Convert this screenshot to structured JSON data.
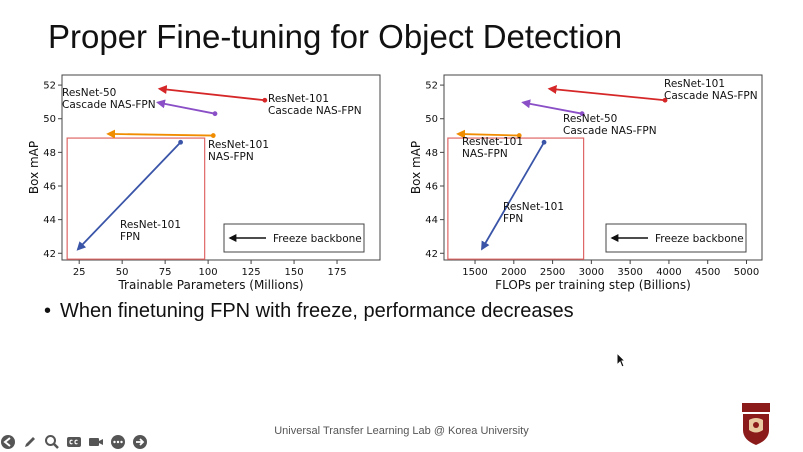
{
  "slide": {
    "title": "Proper Fine-tuning for Object Detection",
    "bullet_marker": "•",
    "bullet": "When finetuning FPN with freeze, performance decreases",
    "footer": "Universal Transfer Learning Lab @ Korea University"
  },
  "colors": {
    "red": "#d62728",
    "purple": "#8a4fc6",
    "orange": "#f08c00",
    "blue": "#3a55a8",
    "box": "#e06666"
  },
  "toolbar": {
    "icons": [
      "back-icon",
      "pen-icon",
      "zoom-icon",
      "captions-icon",
      "camera-icon",
      "more-icon",
      "forward-icon"
    ]
  },
  "chart_data": [
    {
      "type": "scatter",
      "xlabel": "Trainable Parameters (Millions)",
      "ylabel": "Box mAP",
      "xlim": [
        15,
        200
      ],
      "ylim": [
        41.6,
        52.6
      ],
      "xticks": [
        25,
        50,
        75,
        100,
        125,
        150,
        175
      ],
      "xtick_labels": [
        "25",
        "50",
        "75",
        "100",
        "125",
        "150",
        "175"
      ],
      "yticks": [
        42,
        44,
        46,
        48,
        50,
        52
      ],
      "ytick_labels": [
        "42",
        "44",
        "46",
        "48",
        "50",
        "52"
      ],
      "legend_label": "Freeze backbone",
      "legend_position": "bottom-right",
      "arrows": [
        {
          "color_key": "red",
          "from": [
            133,
            51.1
          ],
          "to": [
            70,
            51.8
          ]
        },
        {
          "color_key": "purple",
          "from": [
            104,
            50.3
          ],
          "to": [
            69,
            51.0
          ]
        },
        {
          "color_key": "orange",
          "from": [
            103,
            49.0
          ],
          "to": [
            40,
            49.1
          ]
        },
        {
          "color_key": "blue",
          "from": [
            84,
            48.6
          ],
          "to": [
            23,
            42.1
          ]
        }
      ],
      "labels": [
        {
          "id": "resnet101-cascade",
          "lines": [
            "ResNet-101",
            "Cascade NAS-FPN"
          ]
        },
        {
          "id": "resnet50-cascade",
          "lines": [
            "ResNet-50",
            "Cascade NAS-FPN"
          ]
        },
        {
          "id": "resnet101-nasfpn",
          "lines": [
            "ResNet-101",
            "NAS-FPN"
          ]
        },
        {
          "id": "resnet101-fpn",
          "lines": [
            "ResNet-101",
            "FPN"
          ]
        }
      ],
      "highlight_box": {
        "x": [
          18,
          98
        ],
        "y": [
          41.65,
          48.85
        ]
      }
    },
    {
      "type": "scatter",
      "xlabel": "FLOPs per training step (Billions)",
      "ylabel": "Box mAP",
      "xlim": [
        1100,
        5200
      ],
      "ylim": [
        41.6,
        52.6
      ],
      "xticks": [
        1500,
        2000,
        2500,
        3000,
        3500,
        4000,
        4500,
        5000
      ],
      "xtick_labels": [
        "1500",
        "2000",
        "2500",
        "3000",
        "3500",
        "4000",
        "4500",
        "5000"
      ],
      "yticks": [
        42,
        44,
        46,
        48,
        50,
        52
      ],
      "ytick_labels": [
        "42",
        "44",
        "46",
        "48",
        "50",
        "52"
      ],
      "legend_label": "Freeze backbone",
      "legend_position": "bottom-right",
      "arrows": [
        {
          "color_key": "red",
          "from": [
            3950,
            51.1
          ],
          "to": [
            2420,
            51.8
          ]
        },
        {
          "color_key": "purple",
          "from": [
            2880,
            50.3
          ],
          "to": [
            2080,
            51.0
          ]
        },
        {
          "color_key": "orange",
          "from": [
            2070,
            49.0
          ],
          "to": [
            1240,
            49.1
          ]
        },
        {
          "color_key": "blue",
          "from": [
            2390,
            48.6
          ],
          "to": [
            1570,
            42.1
          ]
        }
      ],
      "labels": [
        {
          "id": "resnet101-cascade",
          "lines": [
            "ResNet-101",
            "Cascade NAS-FPN"
          ]
        },
        {
          "id": "resnet50-cascade",
          "lines": [
            "ResNet-50",
            "Cascade NAS-FPN"
          ]
        },
        {
          "id": "resnet101-nasfpn",
          "lines": [
            "ResNet-101",
            "NAS-FPN"
          ]
        },
        {
          "id": "resnet101-fpn",
          "lines": [
            "ResNet-101",
            "FPN"
          ]
        }
      ],
      "highlight_box": {
        "x": [
          1150,
          2900
        ],
        "y": [
          41.65,
          48.85
        ]
      }
    }
  ]
}
